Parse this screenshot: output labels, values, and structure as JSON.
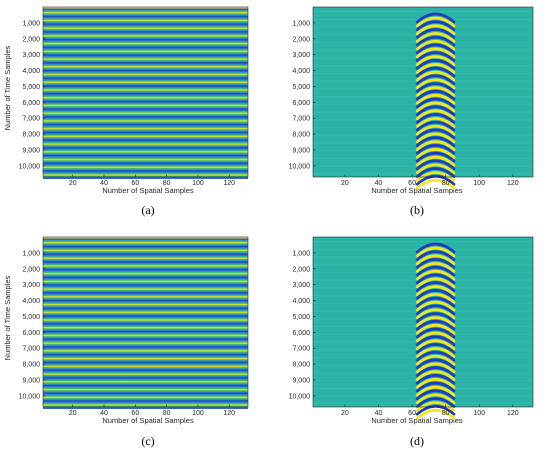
{
  "colors": {
    "blue": "#1f3bbf",
    "teal": "#27b9a6",
    "yellow": "#f6e61e",
    "green": "#4cc26a",
    "background": "#2ab4a7"
  },
  "chart_data": [
    {
      "type": "heatmap",
      "caption": "(a)",
      "pattern": "horizontal-stripes",
      "xlabel": "Number of Spatial Samples",
      "ylabel": "Number of Time Samples",
      "xlim": [
        1,
        132
      ],
      "ylim": [
        0,
        10700
      ],
      "stripe_count": 22,
      "xticks": [
        20,
        40,
        60,
        80,
        100,
        120
      ],
      "xtick_labels": [
        "20",
        "40",
        "60",
        "80",
        "100",
        "120"
      ],
      "yticks": [
        1000,
        2000,
        3000,
        4000,
        5000,
        6000,
        7000,
        8000,
        9000,
        10000
      ],
      "ytick_labels": [
        "1,000",
        "2,000",
        "3,000",
        "4,000",
        "5,000",
        "6,000",
        "7,000",
        "8,000",
        "9,000",
        "10,000"
      ]
    },
    {
      "type": "heatmap",
      "caption": "(b)",
      "pattern": "hyperbolic-event",
      "xlabel": "Number of Spatial Samples",
      "ylabel": "",
      "xlim": [
        1,
        132
      ],
      "ylim": [
        0,
        10700
      ],
      "event_x_range": [
        63,
        85
      ],
      "event_apex_x": 74,
      "stripe_count": 22,
      "xticks": [
        20,
        40,
        60,
        80,
        100,
        120
      ],
      "xtick_labels": [
        "20",
        "40",
        "60",
        "80",
        "100",
        "120"
      ],
      "yticks": [
        1000,
        2000,
        3000,
        4000,
        5000,
        6000,
        7000,
        8000,
        9000,
        10000
      ],
      "ytick_labels": [
        "1,000",
        "2,000",
        "3,000",
        "4,000",
        "5,000",
        "6,000",
        "7,000",
        "8,000",
        "9,000",
        "10,000"
      ]
    },
    {
      "type": "heatmap",
      "caption": "(c)",
      "pattern": "horizontal-stripes",
      "xlabel": "Number of Spatial Samples",
      "ylabel": "Number of Time Samples",
      "xlim": [
        1,
        132
      ],
      "ylim": [
        0,
        10700
      ],
      "stripe_count": 22,
      "xticks": [
        20,
        40,
        60,
        80,
        100,
        120
      ],
      "xtick_labels": [
        "20",
        "40",
        "60",
        "80",
        "100",
        "120"
      ],
      "yticks": [
        1000,
        2000,
        3000,
        4000,
        5000,
        6000,
        7000,
        8000,
        9000,
        10000
      ],
      "ytick_labels": [
        "1,000",
        "2,000",
        "3,000",
        "4,000",
        "5,000",
        "6,000",
        "7,000",
        "8,000",
        "9,000",
        "10,000"
      ]
    },
    {
      "type": "heatmap",
      "caption": "(d)",
      "pattern": "hyperbolic-event",
      "xlabel": "Number of Spatial Samples",
      "ylabel": "",
      "xlim": [
        1,
        132
      ],
      "ylim": [
        0,
        10700
      ],
      "event_x_range": [
        63,
        85
      ],
      "event_apex_x": 74,
      "stripe_count": 22,
      "xticks": [
        20,
        40,
        60,
        80,
        100,
        120
      ],
      "xtick_labels": [
        "20",
        "40",
        "60",
        "80",
        "100",
        "120"
      ],
      "yticks": [
        1000,
        2000,
        3000,
        4000,
        5000,
        6000,
        7000,
        8000,
        9000,
        10000
      ],
      "ytick_labels": [
        "1,000",
        "2,000",
        "3,000",
        "4,000",
        "5,000",
        "6,000",
        "7,000",
        "8,000",
        "9,000",
        "10,000"
      ]
    }
  ]
}
